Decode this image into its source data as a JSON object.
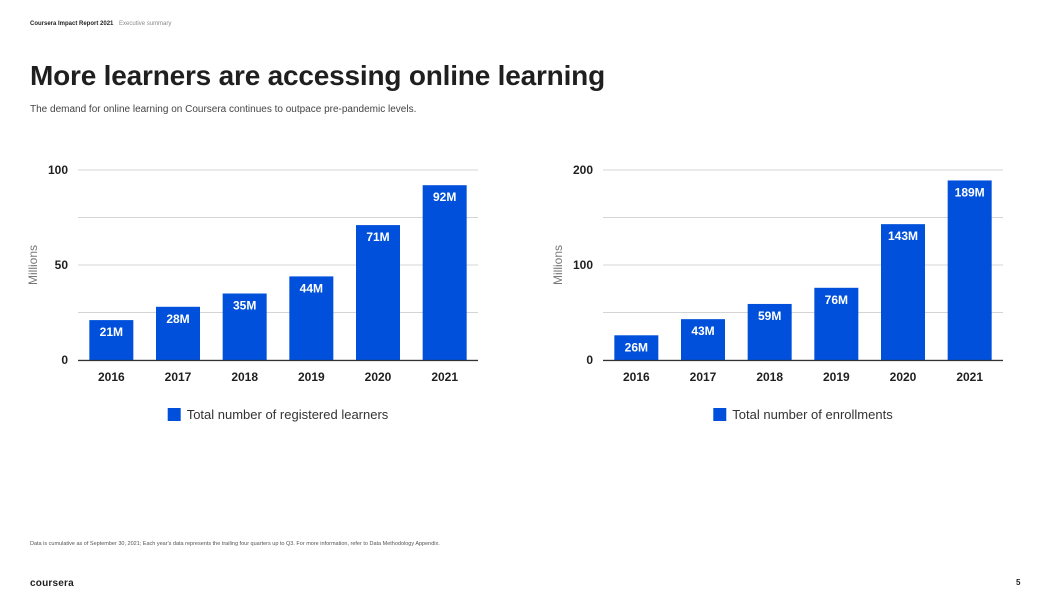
{
  "header": {
    "report": "Coursera Impact Report 2021",
    "section": "Executive summary"
  },
  "title": "More learners are accessing online learning",
  "subtitle": "The demand for online learning on Coursera continues to outpace pre-pandemic levels.",
  "chart_data": [
    {
      "type": "bar",
      "categories": [
        "2016",
        "2017",
        "2018",
        "2019",
        "2020",
        "2021"
      ],
      "series": [
        {
          "name": "Total number of registered learners",
          "values": [
            21,
            28,
            35,
            44,
            71,
            92
          ]
        }
      ],
      "data_labels": [
        "21M",
        "28M",
        "35M",
        "44M",
        "71M",
        "92M"
      ],
      "ylabel": "Millions",
      "ylim": [
        0,
        100
      ],
      "yticks": [
        0,
        50,
        100
      ],
      "yticklabels": [
        "0",
        "50",
        "100"
      ],
      "grid": true,
      "legend_position": "bottom",
      "color": "#0050db"
    },
    {
      "type": "bar",
      "categories": [
        "2016",
        "2017",
        "2018",
        "2019",
        "2020",
        "2021"
      ],
      "series": [
        {
          "name": "Total number of enrollments",
          "values": [
            26,
            43,
            59,
            76,
            143,
            189
          ]
        }
      ],
      "data_labels": [
        "26M",
        "43M",
        "59M",
        "76M",
        "143M",
        "189M"
      ],
      "ylabel": "Millions",
      "ylim": [
        0,
        200
      ],
      "yticks": [
        0,
        100,
        200
      ],
      "yticklabels": [
        "0",
        "100",
        "200"
      ],
      "grid": true,
      "legend_position": "bottom",
      "color": "#0050db"
    }
  ],
  "footnote": "Data is cumulative as of September 30, 2021; Each year's data represents the trailing four quarters up to Q3. For more information, refer to Data Methodology Appendix.",
  "footer": {
    "logo": "coursera",
    "page_number": "5"
  }
}
